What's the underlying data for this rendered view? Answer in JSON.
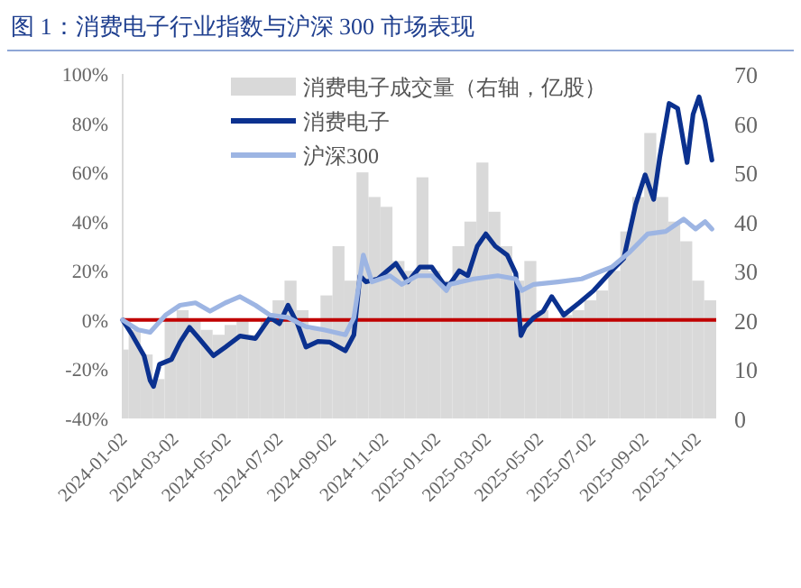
{
  "chart_data": {
    "type": "line",
    "title": "图 1：消费电子行业指数与沪深 300 市场表现",
    "xlim": [
      "2024-01-02",
      "2025-11-25"
    ],
    "xticks": [
      "2024-01-02",
      "2024-03-02",
      "2024-05-02",
      "2024-07-02",
      "2024-09-02",
      "2024-11-02",
      "2025-01-02",
      "2025-03-02",
      "2025-05-02",
      "2025-07-02",
      "2025-09-02",
      "2025-11-02"
    ],
    "ylim": [
      -40,
      100
    ],
    "yticks": [
      {
        "value": -40,
        "label": "-40%"
      },
      {
        "value": -20,
        "label": "-20%"
      },
      {
        "value": 0,
        "label": "0%"
      },
      {
        "value": 20,
        "label": "20%"
      },
      {
        "value": 40,
        "label": "40%"
      },
      {
        "value": 60,
        "label": "60%"
      },
      {
        "value": 80,
        "label": "80%"
      },
      {
        "value": 100,
        "label": "100%"
      }
    ],
    "y2lim": [
      0,
      70
    ],
    "y2ticks": [
      0,
      10,
      20,
      30,
      40,
      50,
      60,
      70
    ],
    "legend": "top",
    "grid": false,
    "marker": "none",
    "line_style": "solid",
    "ref_lines": [
      {
        "axis": "y",
        "value": 0,
        "color": "#c00000"
      }
    ],
    "series": [
      {
        "name": "消费电子成交量（右轴，亿股）",
        "type": "bar",
        "axis": "y2",
        "color": "#d9d9d9",
        "x": [
          "2024-01-02",
          "2024-01-16",
          "2024-01-30",
          "2024-02-13",
          "2024-02-27",
          "2024-03-12",
          "2024-03-26",
          "2024-04-09",
          "2024-04-23",
          "2024-05-07",
          "2024-05-21",
          "2024-06-04",
          "2024-06-18",
          "2024-07-02",
          "2024-07-16",
          "2024-07-30",
          "2024-08-13",
          "2024-08-27",
          "2024-09-10",
          "2024-09-24",
          "2024-10-08",
          "2024-10-22",
          "2024-11-05",
          "2024-11-19",
          "2024-12-03",
          "2024-12-17",
          "2024-12-31",
          "2025-01-14",
          "2025-01-28",
          "2025-02-11",
          "2025-02-25",
          "2025-03-11",
          "2025-03-25",
          "2025-04-08",
          "2025-04-22",
          "2025-05-06",
          "2025-05-20",
          "2025-06-03",
          "2025-06-17",
          "2025-07-01",
          "2025-07-15",
          "2025-07-29",
          "2025-08-12",
          "2025-08-26",
          "2025-09-09",
          "2025-09-23",
          "2025-10-07",
          "2025-10-21",
          "2025-11-04",
          "2025-11-18"
        ],
        "values": [
          14,
          18,
          13,
          8,
          20,
          22,
          20,
          18,
          17,
          19,
          20,
          17,
          20,
          24,
          28,
          22,
          18,
          25,
          35,
          28,
          50,
          45,
          43,
          32,
          30,
          49,
          30,
          28,
          35,
          40,
          52,
          42,
          35,
          28,
          32,
          22,
          20,
          21,
          22,
          24,
          26,
          30,
          38,
          45,
          58,
          45,
          40,
          36,
          28,
          24
        ]
      },
      {
        "name": "消费电子",
        "color": "#0b318f",
        "x": [
          "2024-01-02",
          "2024-01-13",
          "2024-01-27",
          "2024-02-03",
          "2024-02-07",
          "2024-02-14",
          "2024-02-28",
          "2024-03-09",
          "2024-03-20",
          "2024-03-30",
          "2024-04-17",
          "2024-05-01",
          "2024-05-18",
          "2024-06-05",
          "2024-06-22",
          "2024-07-03",
          "2024-07-13",
          "2024-07-24",
          "2024-08-03",
          "2024-08-17",
          "2024-08-31",
          "2024-09-18",
          "2024-09-28",
          "2024-10-05",
          "2024-10-12",
          "2024-10-26",
          "2024-11-06",
          "2024-11-16",
          "2024-11-30",
          "2024-12-14",
          "2024-12-28",
          "2025-01-11",
          "2025-01-18",
          "2025-01-29",
          "2025-02-08",
          "2025-02-19",
          "2025-03-01",
          "2025-03-12",
          "2025-03-26",
          "2025-04-05",
          "2025-04-11",
          "2025-04-16",
          "2025-04-26",
          "2025-05-07",
          "2025-05-17",
          "2025-05-31",
          "2025-06-18",
          "2025-07-05",
          "2025-07-26",
          "2025-08-09",
          "2025-08-23",
          "2025-09-03",
          "2025-09-13",
          "2025-09-20",
          "2025-10-01",
          "2025-10-11",
          "2025-10-22",
          "2025-10-29",
          "2025-11-05",
          "2025-11-12",
          "2025-11-20"
        ],
        "values": [
          0,
          -6,
          -14.5,
          -24.5,
          -27,
          -18,
          -16,
          -9,
          -3,
          -7,
          -14.5,
          -11,
          -6.5,
          -7.5,
          1,
          -1.5,
          6,
          -1.5,
          -11,
          -8.7,
          -9,
          -12.5,
          -6,
          18,
          15.5,
          16.7,
          20,
          23,
          15.5,
          21.5,
          21.5,
          14.5,
          14.5,
          20,
          18,
          30,
          35,
          30,
          26.4,
          19,
          -6.3,
          -2.7,
          1,
          3.6,
          9.5,
          2,
          7,
          12,
          20,
          25,
          47,
          59,
          49,
          66,
          88,
          86,
          64,
          83.6,
          90.7,
          81,
          65
        ]
      },
      {
        "name": "沪深300",
        "color": "#9db5e3",
        "x": [
          "2024-01-02",
          "2024-01-20",
          "2024-02-03",
          "2024-02-21",
          "2024-03-09",
          "2024-03-27",
          "2024-04-13",
          "2024-05-01",
          "2024-05-18",
          "2024-06-05",
          "2024-06-22",
          "2024-07-13",
          "2024-08-03",
          "2024-08-24",
          "2024-09-18",
          "2024-09-28",
          "2024-10-09",
          "2024-10-19",
          "2024-11-09",
          "2024-11-23",
          "2024-12-11",
          "2024-12-28",
          "2025-01-14",
          "2025-01-18",
          "2025-02-15",
          "2025-03-15",
          "2025-04-05",
          "2025-04-12",
          "2025-04-26",
          "2025-05-24",
          "2025-06-21",
          "2025-07-26",
          "2025-08-16",
          "2025-09-06",
          "2025-09-27",
          "2025-10-18",
          "2025-11-01",
          "2025-11-12",
          "2025-11-20"
        ],
        "values": [
          0,
          -4,
          -5,
          2,
          6,
          7,
          3.6,
          7,
          9.5,
          6,
          2,
          1,
          -2.7,
          -4,
          -6,
          1,
          26.4,
          15.5,
          18,
          14.5,
          18,
          18,
          12,
          14.5,
          16.7,
          18,
          16.7,
          12,
          14.5,
          15.5,
          16.7,
          21.5,
          27.6,
          35,
          36,
          41,
          37,
          40,
          37
        ]
      }
    ]
  }
}
